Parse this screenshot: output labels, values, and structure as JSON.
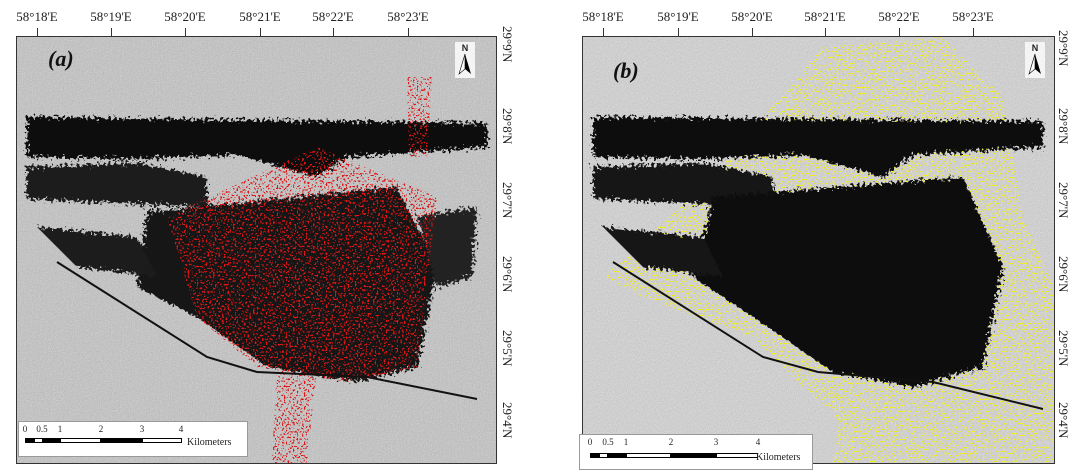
{
  "maps": [
    {
      "id": "a",
      "panel_label": "(a)",
      "overlay_color": "#e01414",
      "longitudes": [
        "58°18'E",
        "58°19'E",
        "58°20'E",
        "58°21'E",
        "58°22'E",
        "58°23'E"
      ],
      "latitudes": [
        "29°9'N",
        "29°8'N",
        "29°7'N",
        "29°6'N",
        "29°5'N",
        "29°4'N"
      ],
      "scale_ticks": [
        "0",
        "0.5",
        "1",
        "2",
        "3",
        "4"
      ],
      "scale_unit": "Kilometers",
      "north_label": "N"
    },
    {
      "id": "b",
      "panel_label": "(b)",
      "overlay_color": "#f2ee1c",
      "longitudes": [
        "58°18'E",
        "58°19'E",
        "58°20'E",
        "58°21'E",
        "58°22'E",
        "58°23'E"
      ],
      "latitudes": [
        "29°9'N",
        "29°8'N",
        "29°7'N",
        "29°6'N",
        "29°5'N",
        "29°4'N"
      ],
      "scale_ticks": [
        "0",
        "0.5",
        "1",
        "2",
        "3",
        "4"
      ],
      "scale_unit": "Kilometers",
      "north_label": "N"
    }
  ]
}
